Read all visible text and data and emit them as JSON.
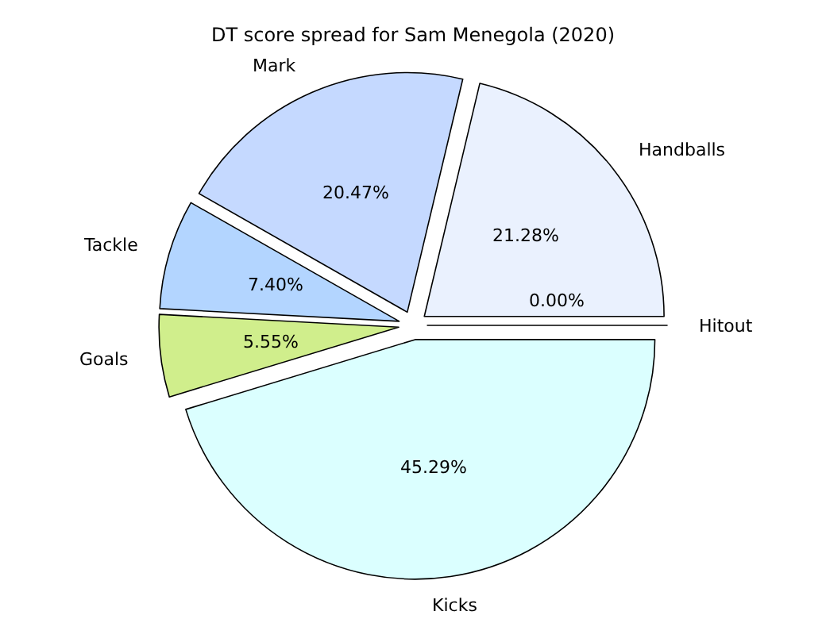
{
  "chart_data": {
    "type": "pie",
    "title": "DT score spread for Sam Menegola (2020)",
    "categories": [
      "Handballs",
      "Mark",
      "Tackle",
      "Goals",
      "Kicks",
      "Hitout"
    ],
    "values": [
      21.28,
      20.47,
      7.4,
      5.55,
      45.29,
      0.0
    ],
    "value_labels": [
      "21.28%",
      "20.47%",
      "7.40%",
      "5.55%",
      "45.29%",
      "0.00%"
    ],
    "colors": [
      "#eaf1fe",
      "#c5d9ff",
      "#b3d5ff",
      "#d0ee8c",
      "#dbffff",
      "#ffffff"
    ],
    "legend": false
  }
}
